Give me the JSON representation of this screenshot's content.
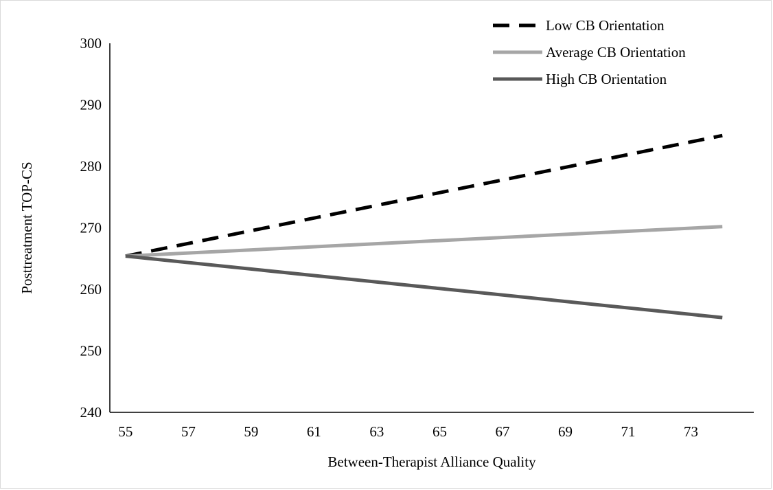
{
  "chart_data": {
    "type": "line",
    "title": "",
    "xlabel": "Between-Therapist Alliance Quality",
    "ylabel": "Posttreatment TOP-CS",
    "x": [
      55,
      74
    ],
    "xticks": [
      "55",
      "57",
      "59",
      "61",
      "63",
      "65",
      "67",
      "69",
      "71",
      "73"
    ],
    "yticks": [
      "240",
      "250",
      "260",
      "270",
      "280",
      "290",
      "300"
    ],
    "xlim": [
      54.5,
      75
    ],
    "ylim": [
      240,
      300
    ],
    "grid": false,
    "legend_position": "top-right",
    "series": [
      {
        "name": "Low CB Orientation",
        "values": [
          265.4,
          285.0
        ],
        "color": "#000000",
        "style": "dashed"
      },
      {
        "name": "Average CB Orientation",
        "values": [
          265.4,
          270.2
        ],
        "color": "#a6a6a6",
        "style": "solid"
      },
      {
        "name": "High CB Orientation",
        "values": [
          265.4,
          255.4
        ],
        "color": "#595959",
        "style": "solid"
      }
    ]
  }
}
